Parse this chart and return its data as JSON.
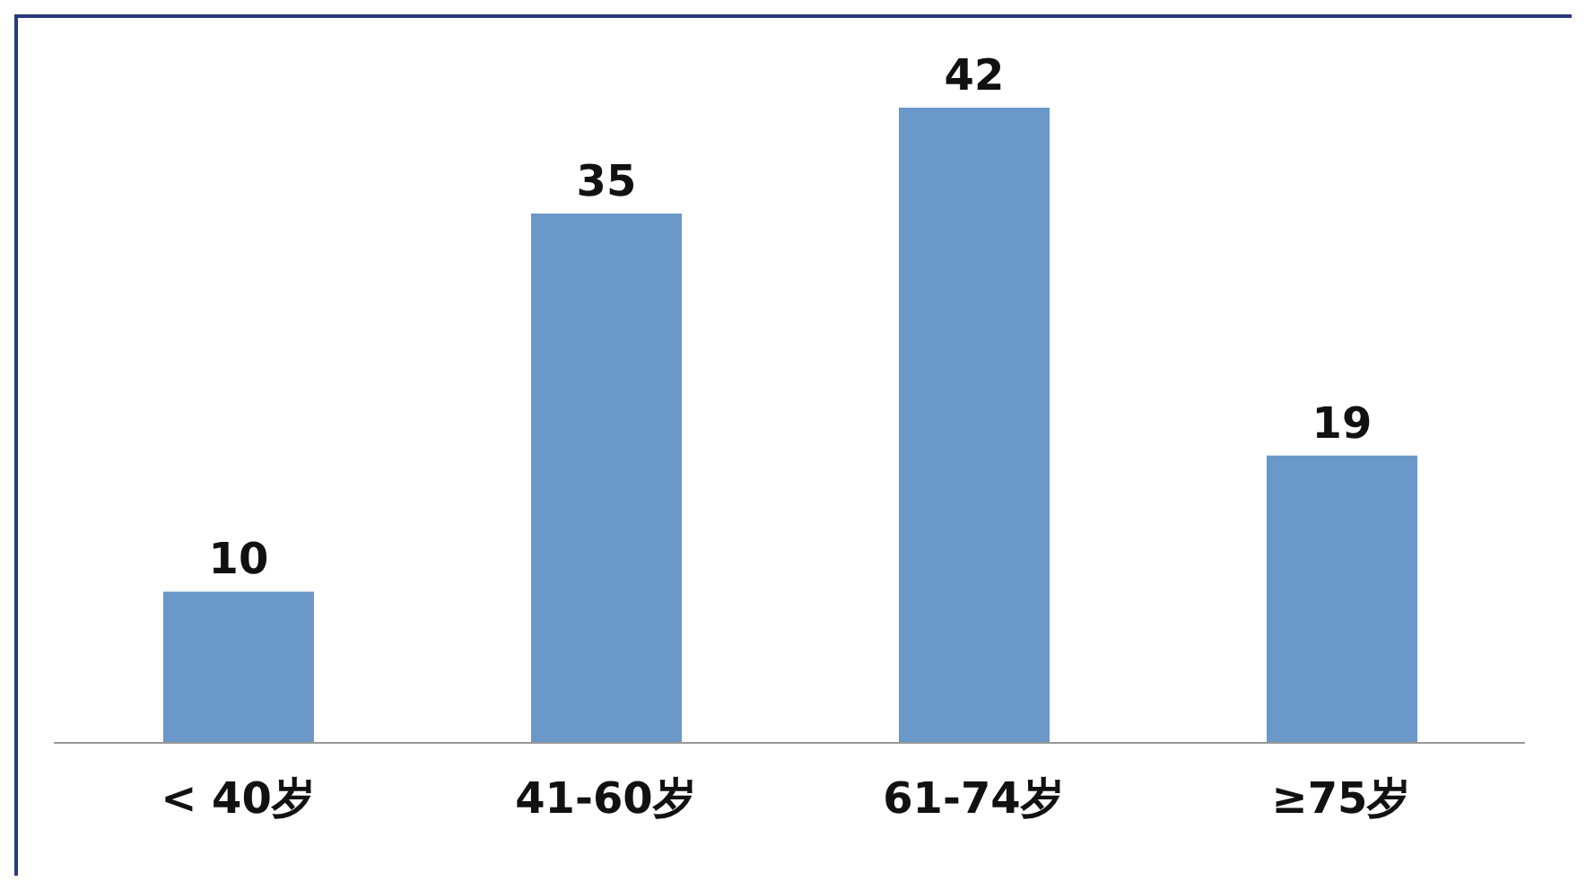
{
  "chart_data": {
    "type": "bar",
    "categories": [
      "< 40岁",
      "41-60岁",
      "61-74岁",
      "≥75岁"
    ],
    "values": [
      10,
      35,
      42,
      19
    ],
    "color": "#6a98c8",
    "data_labels": true
  }
}
